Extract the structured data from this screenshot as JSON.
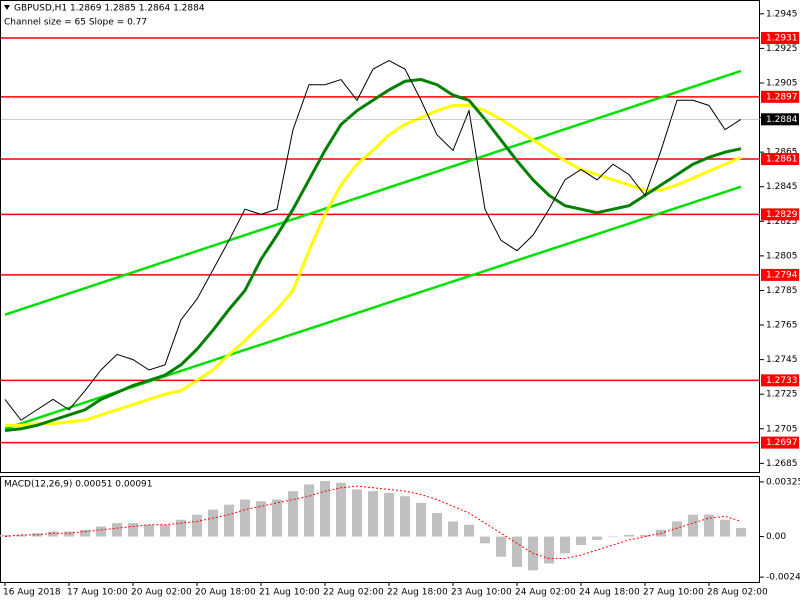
{
  "chart_data": {
    "type": "line",
    "title": "GBPUSD,H1  1.2869 1.2885 1.2864 1.2884",
    "annotation": "Channel size = 65 Slope = 0.77",
    "categories": [
      "16 Aug 2018",
      null,
      null,
      null,
      "17 Aug 10:00",
      null,
      null,
      null,
      "20 Aug 02:00",
      null,
      null,
      null,
      "20 Aug 18:00",
      null,
      null,
      null,
      "21 Aug 10:00",
      null,
      null,
      null,
      "22 Aug 02:00",
      null,
      null,
      null,
      "22 Aug 18:00",
      null,
      null,
      null,
      "23 Aug 10:00",
      null,
      null,
      null,
      "24 Aug 02:00",
      null,
      null,
      null,
      "24 Aug 18:00",
      null,
      null,
      null,
      "27 Aug 10:00",
      null,
      null,
      null,
      "28 Aug 02:00",
      null,
      null
    ],
    "ylim": [
      1.268,
      1.2953
    ],
    "yticks": [
      1.2945,
      1.2925,
      1.2905,
      1.2885,
      1.2865,
      1.2845,
      1.2825,
      1.2805,
      1.2785,
      1.2765,
      1.2745,
      1.2725,
      1.2705,
      1.2685
    ],
    "grid": false,
    "series": [
      {
        "name": "Close",
        "color": "#000000",
        "values": [
          1.2722,
          1.271,
          1.2716,
          1.2722,
          1.2716,
          1.2727,
          1.2739,
          1.2748,
          1.2745,
          1.2739,
          1.2742,
          1.2768,
          1.278,
          1.2797,
          1.2814,
          1.2832,
          1.2829,
          1.2832,
          1.2878,
          1.2904,
          1.2904,
          1.2907,
          1.2895,
          1.2913,
          1.2918,
          1.2913,
          1.2895,
          1.2875,
          1.2866,
          1.2889,
          1.2832,
          1.2814,
          1.2808,
          1.2817,
          1.2832,
          1.2849,
          1.2855,
          1.2849,
          1.2858,
          1.2852,
          1.284,
          1.2866,
          1.2895,
          1.2895,
          1.2892,
          1.2878,
          1.2884
        ]
      },
      {
        "name": "Slow MA",
        "color": "#ffff00",
        "values": [
          1.2707,
          1.2707,
          1.2708,
          1.2708,
          1.2709,
          1.271,
          1.2713,
          1.2716,
          1.2719,
          1.2722,
          1.2725,
          1.2727,
          1.2733,
          1.2739,
          1.2748,
          1.2756,
          1.2765,
          1.2774,
          1.2785,
          1.2808,
          1.2829,
          1.2846,
          1.2858,
          1.2866,
          1.2875,
          1.2881,
          1.2885,
          1.2889,
          1.2892,
          1.2892,
          1.2889,
          1.2884,
          1.2878,
          1.2872,
          1.2866,
          1.286,
          1.2855,
          1.2852,
          1.2849,
          1.2846,
          1.2843,
          1.2843,
          1.2846,
          1.285,
          1.2854,
          1.2858,
          1.2862
        ]
      },
      {
        "name": "Fast MA",
        "color": "#008000",
        "values": [
          1.2704,
          1.2705,
          1.2707,
          1.271,
          1.2713,
          1.2716,
          1.2722,
          1.2726,
          1.273,
          1.2733,
          1.2736,
          1.2742,
          1.2751,
          1.2762,
          1.2774,
          1.2785,
          1.2803,
          1.2817,
          1.2832,
          1.2849,
          1.2866,
          1.2881,
          1.2889,
          1.2895,
          1.2901,
          1.2906,
          1.2907,
          1.2904,
          1.2898,
          1.2895,
          1.2884,
          1.2872,
          1.286,
          1.2849,
          1.284,
          1.2834,
          1.2832,
          1.283,
          1.2832,
          1.2834,
          1.284,
          1.2846,
          1.2852,
          1.2858,
          1.2862,
          1.2865,
          1.2867
        ]
      }
    ],
    "channel": {
      "color": "#00e000",
      "upper": [
        1.2771,
        1.2912
      ],
      "lower": [
        1.2705,
        1.2845
      ]
    },
    "levels": {
      "color": "#ff0000",
      "values": [
        1.2931,
        1.2897,
        1.2861,
        1.2829,
        1.2794,
        1.2733,
        1.2697
      ]
    },
    "current_price": 1.2884,
    "macd": {
      "label": "MACD(12,26,9) 0.00051 0.00091",
      "y2lim": [
        -0.0027,
        0.0036
      ],
      "y2ticks": [
        0.00325,
        {
          "value": 0,
          "label": "0.00"
        },
        -0.00241
      ],
      "histogram": {
        "color": "#c0c0c0",
        "values": [
          0.0001,
          0.0001,
          0.0002,
          0.0003,
          0.0003,
          0.0004,
          0.0006,
          0.0008,
          0.0008,
          0.0007,
          0.0007,
          0.001,
          0.0013,
          0.0016,
          0.0019,
          0.0022,
          0.0021,
          0.0022,
          0.0027,
          0.0031,
          0.0033,
          0.0032,
          0.0028,
          0.0027,
          0.0026,
          0.0024,
          0.002,
          0.0014,
          0.0009,
          0.0007,
          -0.0004,
          -0.0012,
          -0.0018,
          -0.002,
          -0.0016,
          -0.001,
          -0.0005,
          -0.0002,
          0.0,
          0.0001,
          0.0001,
          0.0004,
          0.0009,
          0.0013,
          0.0013,
          0.001,
          0.00051
        ]
      },
      "signal": {
        "color": "#ff0000",
        "values": [
          0.0,
          0.0001,
          0.0001,
          0.0002,
          0.0002,
          0.0003,
          0.0004,
          0.0005,
          0.0006,
          0.0007,
          0.0007,
          0.0008,
          0.0009,
          0.0011,
          0.0013,
          0.0016,
          0.0018,
          0.002,
          0.0022,
          0.0024,
          0.0027,
          0.0029,
          0.003,
          0.0029,
          0.0028,
          0.0027,
          0.0025,
          0.0022,
          0.0018,
          0.0014,
          0.0008,
          0.0002,
          -0.0004,
          -0.001,
          -0.0013,
          -0.0013,
          -0.0011,
          -0.0008,
          -0.0005,
          -0.0002,
          0.0,
          0.0002,
          0.0005,
          0.0008,
          0.0011,
          0.0012,
          0.00091
        ]
      }
    }
  }
}
